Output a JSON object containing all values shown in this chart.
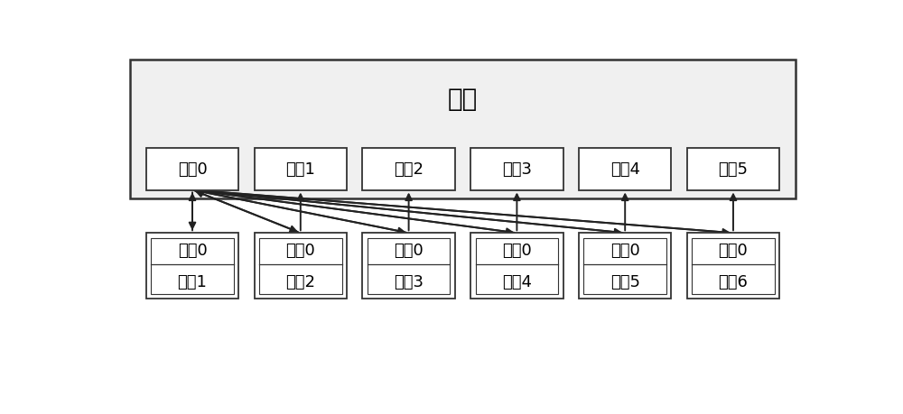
{
  "title": "主机",
  "master_channels": [
    "通道0",
    "通道1",
    "通道2",
    "通道3",
    "通道4",
    "通道5"
  ],
  "slaves": [
    {
      "channel": "通道0",
      "label": "从机1"
    },
    {
      "channel": "通道0",
      "label": "从机2"
    },
    {
      "channel": "通道0",
      "label": "从机3"
    },
    {
      "channel": "通道0",
      "label": "从机4"
    },
    {
      "channel": "通道0",
      "label": "从机5"
    },
    {
      "channel": "通道0",
      "label": "从机6"
    }
  ],
  "bg_color": "#ffffff",
  "box_edge_color": "#333333",
  "master_fill": "#f0f0f0",
  "channel_box_fill": "#ffffff",
  "slave_box_fill": "#ffffff",
  "arrow_color": "#222222",
  "font_size_title": 20,
  "font_size_channel": 13,
  "font_size_slave_label": 13
}
